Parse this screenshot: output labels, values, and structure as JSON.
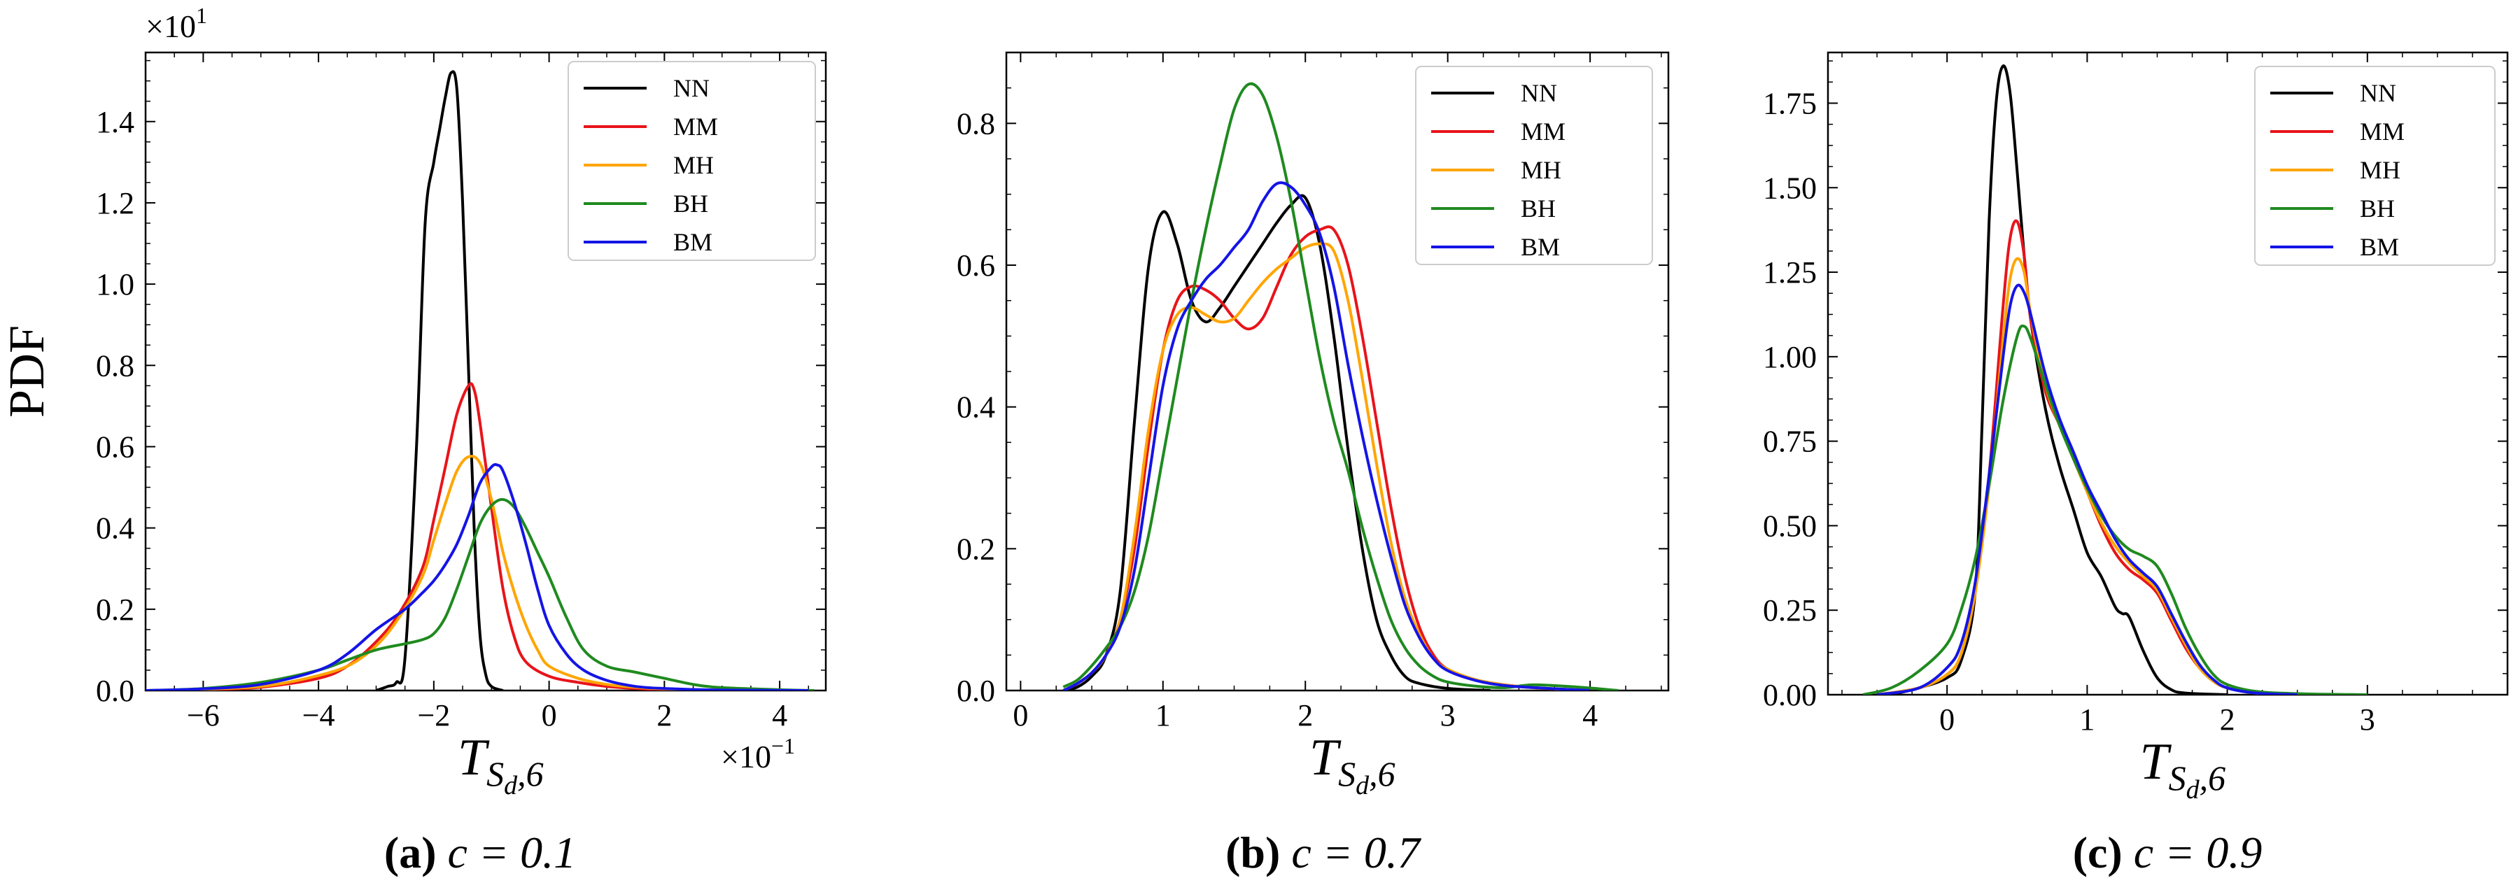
{
  "ylabel": "PDF",
  "xlabel": {
    "main": "T",
    "sub1": "S",
    "sub2": "d",
    "sub3": ",6"
  },
  "legend": [
    "NN",
    "MM",
    "MH",
    "BH",
    "BM"
  ],
  "colors": {
    "NN": "#000000",
    "MM": "#e8141a",
    "MH": "#ffa500",
    "BH": "#1f8a1f",
    "BM": "#1414e6"
  },
  "chart_data": [
    {
      "type": "line",
      "panel_label": "(a)",
      "caption_rest": "c = 0.1",
      "title": "",
      "xlim": [
        -7,
        4.8
      ],
      "ylim": [
        0,
        1.57
      ],
      "xticks": [
        -6,
        -4,
        -2,
        0,
        2,
        4
      ],
      "xtick_labels": [
        "−6",
        "−4",
        "−2",
        "0",
        "2",
        "4"
      ],
      "yticks": [
        0,
        0.2,
        0.4,
        0.6,
        0.8,
        1.0,
        1.2,
        1.4
      ],
      "ytick_labels": [
        "0.0",
        "0.2",
        "0.4",
        "0.6",
        "0.8",
        "1.0",
        "1.2",
        "1.4"
      ],
      "y_multiplier": "×10",
      "y_exp": "1",
      "x_multiplier": "×10",
      "x_exp": "−1",
      "series": [
        {
          "name": "NN",
          "x": [
            -3.0,
            -2.8,
            -2.65,
            -2.5,
            -2.3,
            -2.15,
            -2.0,
            -1.9,
            -1.8,
            -1.7,
            -1.6,
            -1.5,
            -1.4,
            -1.3,
            -1.2,
            -1.1,
            -1.0,
            -0.8
          ],
          "y": [
            0,
            0.01,
            0.02,
            0.08,
            0.6,
            1.15,
            1.3,
            1.38,
            1.46,
            1.52,
            1.48,
            1.2,
            0.8,
            0.4,
            0.14,
            0.04,
            0.01,
            0
          ]
        },
        {
          "name": "MM",
          "x": [
            -7,
            -6.0,
            -5.0,
            -4.0,
            -3.5,
            -3.0,
            -2.6,
            -2.2,
            -2.0,
            -1.8,
            -1.6,
            -1.4,
            -1.3,
            -1.2,
            -1.0,
            -0.8,
            -0.6,
            -0.4,
            0,
            0.5,
            1.0,
            1.5,
            2.0,
            3.0,
            4.5
          ],
          "y": [
            0,
            0.002,
            0.008,
            0.03,
            0.06,
            0.12,
            0.19,
            0.3,
            0.42,
            0.55,
            0.68,
            0.75,
            0.74,
            0.66,
            0.45,
            0.25,
            0.13,
            0.07,
            0.035,
            0.02,
            0.01,
            0.005,
            0.002,
            0.001,
            0
          ]
        },
        {
          "name": "MH",
          "x": [
            -7,
            -6.0,
            -5.0,
            -4.2,
            -3.5,
            -3.0,
            -2.6,
            -2.2,
            -2.0,
            -1.8,
            -1.6,
            -1.4,
            -1.2,
            -1.0,
            -0.8,
            -0.6,
            -0.4,
            -0.2,
            0,
            0.5,
            1.0,
            1.5,
            2.0,
            3.0,
            4.5
          ],
          "y": [
            0,
            0.003,
            0.01,
            0.03,
            0.06,
            0.11,
            0.18,
            0.28,
            0.37,
            0.46,
            0.54,
            0.575,
            0.56,
            0.47,
            0.34,
            0.24,
            0.16,
            0.1,
            0.06,
            0.03,
            0.015,
            0.008,
            0.004,
            0.001,
            0
          ]
        },
        {
          "name": "BH",
          "x": [
            -7,
            -6.0,
            -5.0,
            -4.0,
            -3.5,
            -3.0,
            -2.5,
            -2.2,
            -2.0,
            -1.8,
            -1.6,
            -1.4,
            -1.2,
            -1.0,
            -0.8,
            -0.6,
            -0.4,
            -0.2,
            0,
            0.3,
            0.6,
            1.0,
            1.5,
            2.0,
            2.5,
            3.0,
            4.0,
            4.6
          ],
          "y": [
            0,
            0.005,
            0.02,
            0.05,
            0.075,
            0.1,
            0.115,
            0.125,
            0.14,
            0.18,
            0.25,
            0.33,
            0.41,
            0.455,
            0.47,
            0.45,
            0.4,
            0.34,
            0.28,
            0.18,
            0.1,
            0.06,
            0.045,
            0.03,
            0.015,
            0.007,
            0.002,
            0
          ]
        },
        {
          "name": "BM",
          "x": [
            -7,
            -6.0,
            -5.0,
            -4.0,
            -3.5,
            -3.0,
            -2.5,
            -2.2,
            -2.0,
            -1.8,
            -1.6,
            -1.4,
            -1.2,
            -1.0,
            -0.9,
            -0.8,
            -0.6,
            -0.4,
            -0.2,
            0,
            0.3,
            0.6,
            1.0,
            1.5,
            2.0,
            3.0,
            4.5
          ],
          "y": [
            0,
            0.004,
            0.015,
            0.05,
            0.09,
            0.15,
            0.2,
            0.24,
            0.27,
            0.31,
            0.36,
            0.43,
            0.51,
            0.55,
            0.555,
            0.54,
            0.46,
            0.36,
            0.25,
            0.16,
            0.09,
            0.05,
            0.025,
            0.01,
            0.005,
            0.001,
            0
          ]
        }
      ]
    },
    {
      "type": "line",
      "panel_label": "(b)",
      "caption_rest": "c = 0.7",
      "title": "",
      "xlim": [
        -0.1,
        4.55
      ],
      "ylim": [
        0,
        0.9
      ],
      "xticks": [
        0,
        1,
        2,
        3,
        4
      ],
      "xtick_labels": [
        "0",
        "1",
        "2",
        "3",
        "4"
      ],
      "yticks": [
        0,
        0.2,
        0.4,
        0.6,
        0.8
      ],
      "ytick_labels": [
        "0.0",
        "0.2",
        "0.4",
        "0.6",
        "0.8"
      ],
      "series": [
        {
          "name": "NN",
          "x": [
            0.3,
            0.4,
            0.5,
            0.6,
            0.7,
            0.8,
            0.9,
            1.0,
            1.1,
            1.2,
            1.3,
            1.4,
            1.5,
            1.6,
            1.7,
            1.8,
            1.9,
            2.0,
            2.1,
            2.2,
            2.3,
            2.4,
            2.5,
            2.6,
            2.7,
            2.8,
            3.0,
            3.3
          ],
          "y": [
            0,
            0.005,
            0.02,
            0.05,
            0.14,
            0.38,
            0.6,
            0.675,
            0.63,
            0.55,
            0.52,
            0.54,
            0.57,
            0.6,
            0.63,
            0.66,
            0.685,
            0.695,
            0.63,
            0.5,
            0.34,
            0.2,
            0.1,
            0.05,
            0.02,
            0.01,
            0.003,
            0
          ]
        },
        {
          "name": "MM",
          "x": [
            0.3,
            0.4,
            0.5,
            0.6,
            0.7,
            0.8,
            0.9,
            1.0,
            1.1,
            1.2,
            1.3,
            1.4,
            1.5,
            1.6,
            1.7,
            1.8,
            1.9,
            2.0,
            2.1,
            2.2,
            2.3,
            2.4,
            2.5,
            2.6,
            2.7,
            2.8,
            2.9,
            3.0,
            3.2,
            3.4,
            3.6,
            4.0
          ],
          "y": [
            0,
            0.01,
            0.025,
            0.05,
            0.1,
            0.2,
            0.35,
            0.48,
            0.55,
            0.57,
            0.565,
            0.55,
            0.525,
            0.51,
            0.525,
            0.57,
            0.615,
            0.64,
            0.65,
            0.65,
            0.6,
            0.5,
            0.38,
            0.26,
            0.16,
            0.09,
            0.05,
            0.03,
            0.015,
            0.008,
            0.004,
            0
          ]
        },
        {
          "name": "MH",
          "x": [
            0.3,
            0.4,
            0.5,
            0.6,
            0.7,
            0.8,
            0.9,
            1.0,
            1.1,
            1.2,
            1.3,
            1.4,
            1.5,
            1.6,
            1.7,
            1.8,
            1.9,
            2.0,
            2.1,
            2.2,
            2.3,
            2.4,
            2.5,
            2.6,
            2.7,
            2.8,
            2.9,
            3.0,
            3.2,
            3.4,
            3.6,
            4.0
          ],
          "y": [
            0,
            0.01,
            0.025,
            0.05,
            0.1,
            0.22,
            0.37,
            0.48,
            0.53,
            0.54,
            0.53,
            0.52,
            0.525,
            0.55,
            0.575,
            0.595,
            0.61,
            0.625,
            0.63,
            0.62,
            0.55,
            0.44,
            0.32,
            0.21,
            0.13,
            0.08,
            0.045,
            0.03,
            0.015,
            0.008,
            0.004,
            0
          ]
        },
        {
          "name": "BH",
          "x": [
            0.3,
            0.4,
            0.5,
            0.6,
            0.7,
            0.8,
            0.9,
            1.0,
            1.1,
            1.2,
            1.3,
            1.4,
            1.5,
            1.6,
            1.7,
            1.8,
            1.9,
            2.0,
            2.1,
            2.2,
            2.3,
            2.4,
            2.5,
            2.6,
            2.7,
            2.8,
            2.9,
            3.0,
            3.2,
            3.4,
            3.6,
            3.9,
            4.2
          ],
          "y": [
            0.005,
            0.015,
            0.035,
            0.06,
            0.09,
            0.14,
            0.22,
            0.33,
            0.44,
            0.55,
            0.65,
            0.74,
            0.82,
            0.855,
            0.84,
            0.78,
            0.69,
            0.58,
            0.47,
            0.38,
            0.31,
            0.23,
            0.16,
            0.1,
            0.06,
            0.035,
            0.02,
            0.012,
            0.006,
            0.004,
            0.008,
            0.005,
            0
          ]
        },
        {
          "name": "BM",
          "x": [
            0.3,
            0.4,
            0.5,
            0.6,
            0.7,
            0.8,
            0.9,
            1.0,
            1.1,
            1.2,
            1.3,
            1.4,
            1.5,
            1.6,
            1.7,
            1.8,
            1.9,
            2.0,
            2.1,
            2.2,
            2.3,
            2.4,
            2.5,
            2.6,
            2.7,
            2.8,
            2.9,
            3.0,
            3.2,
            3.4,
            3.7,
            4.0
          ],
          "y": [
            0,
            0.01,
            0.025,
            0.05,
            0.09,
            0.17,
            0.3,
            0.43,
            0.51,
            0.55,
            0.58,
            0.6,
            0.625,
            0.65,
            0.69,
            0.715,
            0.71,
            0.685,
            0.645,
            0.57,
            0.46,
            0.36,
            0.27,
            0.19,
            0.12,
            0.075,
            0.045,
            0.028,
            0.014,
            0.007,
            0.003,
            0
          ]
        }
      ]
    },
    {
      "type": "line",
      "panel_label": "(c)",
      "caption_rest": "c = 0.9",
      "title": "",
      "xlim": [
        -0.85,
        4.0
      ],
      "ylim": [
        0,
        1.9
      ],
      "xticks": [
        0,
        1,
        2,
        3
      ],
      "xtick_labels": [
        "0",
        "1",
        "2",
        "3"
      ],
      "yticks": [
        0,
        0.25,
        0.5,
        0.75,
        1.0,
        1.25,
        1.5,
        1.75
      ],
      "ytick_labels": [
        "0.00",
        "0.25",
        "0.50",
        "0.75",
        "1.00",
        "1.25",
        "1.50",
        "1.75"
      ],
      "series": [
        {
          "name": "NN",
          "x": [
            -0.4,
            -0.2,
            0,
            0.1,
            0.2,
            0.25,
            0.3,
            0.35,
            0.4,
            0.45,
            0.5,
            0.55,
            0.6,
            0.7,
            0.8,
            0.9,
            1.0,
            1.1,
            1.2,
            1.25,
            1.3,
            1.4,
            1.5,
            1.6,
            1.7,
            2.0
          ],
          "y": [
            0,
            0.02,
            0.05,
            0.1,
            0.3,
            0.8,
            1.4,
            1.75,
            1.86,
            1.78,
            1.55,
            1.3,
            1.1,
            0.85,
            0.68,
            0.55,
            0.42,
            0.35,
            0.26,
            0.24,
            0.23,
            0.13,
            0.05,
            0.015,
            0.005,
            0
          ]
        },
        {
          "name": "MM",
          "x": [
            -0.5,
            -0.2,
            0,
            0.1,
            0.2,
            0.3,
            0.4,
            0.45,
            0.5,
            0.55,
            0.6,
            0.7,
            0.8,
            0.9,
            1.0,
            1.1,
            1.2,
            1.3,
            1.4,
            1.5,
            1.6,
            1.7,
            1.8,
            1.9,
            2.0,
            2.2,
            2.5
          ],
          "y": [
            0,
            0.02,
            0.06,
            0.12,
            0.3,
            0.65,
            1.15,
            1.35,
            1.4,
            1.3,
            1.1,
            0.9,
            0.8,
            0.7,
            0.6,
            0.5,
            0.42,
            0.37,
            0.34,
            0.3,
            0.22,
            0.14,
            0.08,
            0.04,
            0.02,
            0.005,
            0
          ]
        },
        {
          "name": "MH",
          "x": [
            -0.5,
            -0.2,
            0,
            0.1,
            0.2,
            0.3,
            0.4,
            0.45,
            0.5,
            0.55,
            0.6,
            0.7,
            0.8,
            0.9,
            1.0,
            1.1,
            1.2,
            1.3,
            1.4,
            1.5,
            1.6,
            1.7,
            1.8,
            1.9,
            2.0,
            2.2,
            2.5
          ],
          "y": [
            0,
            0.02,
            0.06,
            0.12,
            0.3,
            0.62,
            1.05,
            1.23,
            1.29,
            1.25,
            1.12,
            0.92,
            0.8,
            0.7,
            0.6,
            0.51,
            0.44,
            0.39,
            0.35,
            0.31,
            0.23,
            0.15,
            0.08,
            0.04,
            0.02,
            0.005,
            0
          ]
        },
        {
          "name": "BH",
          "x": [
            -0.6,
            -0.4,
            -0.2,
            0,
            0.1,
            0.2,
            0.3,
            0.4,
            0.5,
            0.55,
            0.6,
            0.7,
            0.8,
            0.9,
            1.0,
            1.1,
            1.2,
            1.3,
            1.4,
            1.5,
            1.6,
            1.7,
            1.8,
            1.9,
            2.0,
            2.2,
            2.5,
            3.0
          ],
          "y": [
            0,
            0.02,
            0.07,
            0.15,
            0.25,
            0.4,
            0.62,
            0.87,
            1.06,
            1.09,
            1.05,
            0.92,
            0.8,
            0.7,
            0.61,
            0.53,
            0.47,
            0.43,
            0.41,
            0.38,
            0.3,
            0.2,
            0.12,
            0.06,
            0.03,
            0.01,
            0.003,
            0
          ]
        },
        {
          "name": "BM",
          "x": [
            -0.5,
            -0.2,
            0,
            0.1,
            0.2,
            0.3,
            0.4,
            0.45,
            0.5,
            0.55,
            0.6,
            0.7,
            0.8,
            0.9,
            1.0,
            1.1,
            1.2,
            1.3,
            1.4,
            1.5,
            1.6,
            1.7,
            1.8,
            1.9,
            2.0,
            2.2,
            2.5
          ],
          "y": [
            0,
            0.02,
            0.08,
            0.15,
            0.33,
            0.65,
            1.0,
            1.15,
            1.21,
            1.19,
            1.12,
            0.95,
            0.82,
            0.72,
            0.62,
            0.54,
            0.46,
            0.4,
            0.36,
            0.32,
            0.24,
            0.16,
            0.09,
            0.045,
            0.02,
            0.005,
            0
          ]
        }
      ]
    }
  ]
}
